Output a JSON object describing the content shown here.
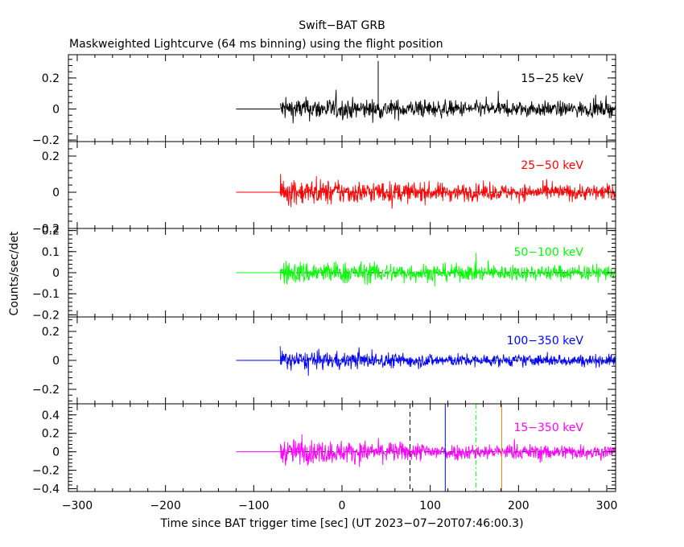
{
  "chart_data": {
    "type": "line",
    "title": "Swift−BAT GRB",
    "subtitle": "Maskweighted Lightcurve (64 ms binning) using the flight position",
    "xlabel": "Time since BAT trigger time [sec] (UT 2023−07−20T07:46:00.3)",
    "ylabel": "Counts/sec/det",
    "xlim": [
      -310,
      310
    ],
    "x_ticks": [
      -300,
      -200,
      -100,
      0,
      100,
      200,
      300
    ],
    "x_tick_labels": [
      "−300",
      "−200",
      "−100",
      "0",
      "100",
      "200",
      "300"
    ],
    "panels": [
      {
        "band": "15−25 keV",
        "color": "#000000",
        "ylim": [
          -0.21,
          0.35
        ],
        "y_ticks": [
          -0.2,
          0,
          0.2
        ],
        "y_tick_labels": [
          "−0.2",
          "0",
          "0.2"
        ],
        "zero_line": false,
        "flat_start": -120,
        "data_start": -70,
        "data_end": 310,
        "noise_amp_start": 0.09,
        "noise_amp_end": 0.06,
        "spikes": [
          {
            "x": 41,
            "y": 0.31
          }
        ]
      },
      {
        "band": "25−50 keV",
        "color": "#ff0000",
        "ylim": [
          -0.2,
          0.28
        ],
        "y_ticks": [
          -0.2,
          0,
          0.2
        ],
        "y_tick_labels": [
          "−0.2",
          "0",
          "0.2"
        ],
        "zero_line": true,
        "flat_start": -120,
        "data_start": -70,
        "data_end": 310,
        "noise_amp_start": 0.09,
        "noise_amp_end": 0.055,
        "spikes": []
      },
      {
        "band": "50−100 keV",
        "color": "#00ff00",
        "ylim": [
          -0.21,
          0.21
        ],
        "y_ticks": [
          -0.2,
          -0.1,
          0,
          0.1,
          0.2
        ],
        "y_tick_labels": [
          "−0.2",
          "−0.1",
          "0",
          "0.1",
          "0.2"
        ],
        "zero_line": true,
        "flat_start": -120,
        "data_start": -70,
        "data_end": 310,
        "noise_amp_start": 0.07,
        "noise_amp_end": 0.045,
        "spikes": []
      },
      {
        "band": "100−350 keV",
        "color": "#0000ff",
        "ylim": [
          -0.3,
          0.3
        ],
        "y_ticks": [
          -0.2,
          0,
          0.2
        ],
        "y_tick_labels": [
          "−0.2",
          "0",
          "0.2"
        ],
        "zero_line": true,
        "flat_start": -120,
        "data_start": -70,
        "data_end": 310,
        "noise_amp_start": 0.08,
        "noise_amp_end": 0.05,
        "spikes": []
      },
      {
        "band": "15−350 keV",
        "color": "#ff00ff",
        "ylim": [
          -0.43,
          0.52
        ],
        "y_ticks": [
          -0.4,
          -0.2,
          0,
          0.2,
          0.4
        ],
        "y_tick_labels": [
          "−0.4",
          "−0.2",
          "0",
          "0.2",
          "0.4"
        ],
        "zero_line": true,
        "flat_start": -120,
        "data_start": -70,
        "data_end": 310,
        "noise_amp_start": 0.17,
        "noise_amp_end": 0.1,
        "spikes": [],
        "markers": [
          {
            "x": 77,
            "color": "#000000",
            "style": "dashed"
          },
          {
            "x": 117,
            "color": "#0000ff",
            "style": "solid"
          },
          {
            "x": 152,
            "color": "#00ff00",
            "style": "dashdot"
          },
          {
            "x": 181,
            "color": "#ff8000",
            "style": "solid"
          }
        ]
      }
    ]
  }
}
